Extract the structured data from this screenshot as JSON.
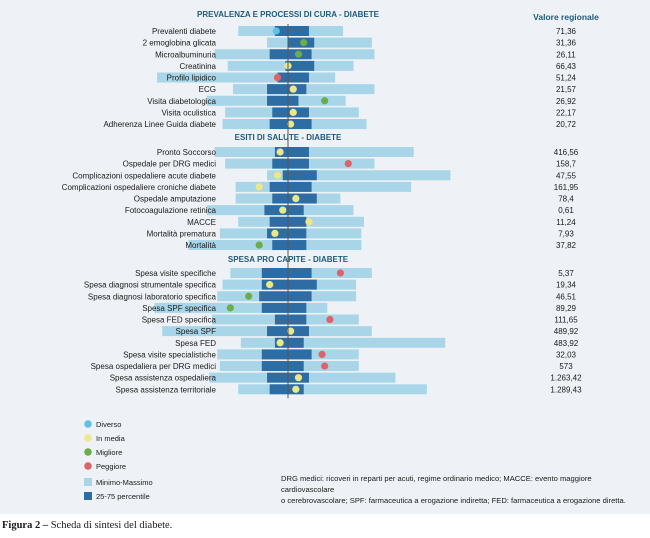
{
  "chart_data": {
    "type": "table",
    "value_header": "Valore regionale",
    "sections": [
      {
        "title": "PREVALENZA E PROCESSI DI CURA - DIABETE",
        "rows": [
          {
            "label": "Prevalenti diabete",
            "value": "71,36",
            "status": "diverso",
            "min": 31,
            "q1": 45,
            "q3": 58,
            "max": 71,
            "point": 45.5
          },
          {
            "label": "2 emoglobina glicata",
            "value": "31,36",
            "status": "migliore",
            "min": 42,
            "q1": 50,
            "q3": 60,
            "max": 82,
            "point": 56
          },
          {
            "label": "Microalbuminuria",
            "value": "26,11",
            "status": "migliore",
            "min": 22,
            "q1": 43,
            "q3": 59,
            "max": 83,
            "point": 54
          },
          {
            "label": "Creatinina",
            "value": "66,43",
            "status": "in media",
            "min": 27,
            "q1": 49,
            "q3": 60,
            "max": 75,
            "point": 50
          },
          {
            "label": "Profilo lipidico",
            "value": "51,24",
            "status": "peggiore",
            "min": 0,
            "q1": 46,
            "q3": 58,
            "max": 68,
            "point": 46
          },
          {
            "label": "ECG",
            "value": "21,57",
            "status": "in media",
            "min": 29,
            "q1": 42,
            "q3": 57,
            "max": 83,
            "point": 52
          },
          {
            "label": "Visita diabetologica",
            "value": "26,92",
            "status": "migliore",
            "min": 19,
            "q1": 42,
            "q3": 54,
            "max": 72,
            "point": 64
          },
          {
            "label": "Visita oculistica",
            "value": "22,17",
            "status": "in media",
            "min": 26,
            "q1": 44,
            "q3": 58,
            "max": 77,
            "point": 52
          },
          {
            "label": "Adherenza Linee Guida diabete",
            "value": "20,72",
            "status": "in media",
            "min": 25,
            "q1": 43,
            "q3": 59,
            "max": 80,
            "point": 51
          }
        ]
      },
      {
        "title": "ESITI DI SALUTE - DIABETE",
        "rows": [
          {
            "label": "Pronto Soccorso",
            "value": "416,56",
            "status": "in media",
            "min": 22,
            "q1": 45,
            "q3": 58,
            "max": 98,
            "point": 47
          },
          {
            "label": "Ospedale per DRG medici",
            "value": "158,7",
            "status": "peggiore",
            "min": 26,
            "q1": 44,
            "q3": 58,
            "max": 83,
            "point": 73
          },
          {
            "label": "Complicazioni ospedaliere acute diabete",
            "value": "47,55",
            "status": "in media",
            "min": 42,
            "q1": 48,
            "q3": 61,
            "max": 112,
            "point": 46
          },
          {
            "label": "Complicazioni ospedaliere croniche diabete",
            "value": "161,95",
            "status": "in media",
            "min": 30,
            "q1": 43,
            "q3": 59,
            "max": 97,
            "point": 39
          },
          {
            "label": "Ospedale amputazione",
            "value": "78,4",
            "status": "in media",
            "min": 30,
            "q1": 44,
            "q3": 61,
            "max": 70,
            "point": 53
          },
          {
            "label": "Fotocoagulazione retinica",
            "value": "0,61",
            "status": "in media",
            "min": 19,
            "q1": 41,
            "q3": 56,
            "max": 75,
            "point": 48
          },
          {
            "label": "MACCE",
            "value": "11,24",
            "status": "in media",
            "min": 31,
            "q1": 43,
            "q3": 57,
            "max": 79,
            "point": 58
          },
          {
            "label": "Mortalità prematura",
            "value": "7,93",
            "status": "in media",
            "min": 24,
            "q1": 42,
            "q3": 57,
            "max": 78,
            "point": 45
          },
          {
            "label": "Mortalità",
            "value": "37,82",
            "status": "migliore",
            "min": 12,
            "q1": 44,
            "q3": 57,
            "max": 78,
            "point": 39
          }
        ]
      },
      {
        "title": "SPESA PRO CAPITE - DIABETE",
        "rows": [
          {
            "label": "Spesa visite specifiche",
            "value": "5,37",
            "status": "peggiore",
            "min": 28,
            "q1": 40,
            "q3": 59,
            "max": 82,
            "point": 70
          },
          {
            "label": "Spesa diagnosi strumentale specifica",
            "value": "19,34",
            "status": "in media",
            "min": 25,
            "q1": 40,
            "q3": 61,
            "max": 76,
            "point": 43
          },
          {
            "label": "Spesa diagnosi laboratorio specifica",
            "value": "46,51",
            "status": "migliore",
            "min": 23,
            "q1": 39,
            "q3": 59,
            "max": 76,
            "point": 35
          },
          {
            "label": "Spesa SPF specifica",
            "value": "89,29",
            "status": "migliore",
            "min": -1,
            "q1": 40,
            "q3": 57,
            "max": 65,
            "point": 28
          },
          {
            "label": "Spesa FED specifica",
            "value": "111,65",
            "status": "peggiore",
            "min": 21,
            "q1": 45,
            "q3": 57,
            "max": 77,
            "point": 66
          },
          {
            "label": "Spesa SPF",
            "value": "489,92",
            "status": "in media",
            "min": 2,
            "q1": 42,
            "q3": 58,
            "max": 82,
            "point": 51
          },
          {
            "label": "Spesa FED",
            "value": "483,92",
            "status": "in media",
            "min": 32,
            "q1": 45,
            "q3": 56,
            "max": 110,
            "point": 47
          },
          {
            "label": "Spesa visite specialistiche",
            "value": "32,03",
            "status": "peggiore",
            "min": 23,
            "q1": 40,
            "q3": 59,
            "max": 77,
            "point": 63
          },
          {
            "label": "Spesa ospedaliera per DRG medici",
            "value": "573",
            "status": "peggiore",
            "min": 24,
            "q1": 40,
            "q3": 56,
            "max": 77,
            "point": 64
          },
          {
            "label": "Spesa assistenza ospedaliera",
            "value": "1.263,42",
            "status": "in media",
            "min": 20,
            "q1": 42,
            "q3": 58,
            "max": 91,
            "point": 54
          },
          {
            "label": "Spesa assistenza territoriale",
            "value": "1.289,43",
            "status": "in media",
            "min": 31,
            "q1": 43,
            "q3": 56,
            "max": 103,
            "point": 53
          }
        ]
      }
    ]
  },
  "legend": [
    {
      "key": "diverso",
      "label": "Diverso",
      "color": "#5cc3e6",
      "kind": "dot"
    },
    {
      "key": "in media",
      "label": "In media",
      "color": "#ece888",
      "kind": "dot"
    },
    {
      "key": "migliore",
      "label": "Migliore",
      "color": "#6cad49",
      "kind": "dot"
    },
    {
      "key": "peggiore",
      "label": "Peggiore",
      "color": "#d9656a",
      "kind": "dot"
    },
    {
      "key": "range",
      "label": "Minimo-Massimo",
      "color": "#a8d6e8",
      "kind": "square"
    },
    {
      "key": "iqr",
      "label": "25-75 percentile",
      "color": "#2e6da4",
      "kind": "square"
    }
  ],
  "colors": {
    "range": "#a8d6e8",
    "iqr": "#2e6da4",
    "median": "#555555",
    "section": "#1f5a7a"
  },
  "footnote": {
    "line1": "DRG medici: ricoveri in reparti per acuti, regime ordinario medico; MACCE: evento maggiore cardiovascolare",
    "line2": "o cerebrovascolare; SPF: farmaceutica a erogazione indiretta; FED: farmaceutica a erogazione diretta."
  },
  "caption": {
    "prefix": "Figura 2 –",
    "text": "Scheda di sintesi del diabete."
  }
}
